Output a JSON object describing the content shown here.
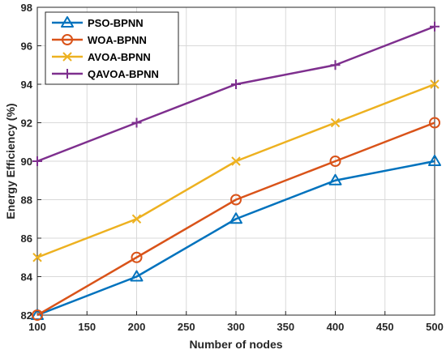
{
  "chart_data": {
    "type": "line",
    "xlabel": "Number of nodes",
    "ylabel": "Energy Efficiency (%)",
    "xlim": [
      100,
      500
    ],
    "ylim": [
      82,
      98
    ],
    "xticks": [
      "100",
      "150",
      "200",
      "250",
      "300",
      "350",
      "400",
      "450",
      "500"
    ],
    "yticks": [
      "82",
      "84",
      "86",
      "88",
      "90",
      "92",
      "94",
      "96",
      "98"
    ],
    "x": [
      100,
      200,
      300,
      400,
      500
    ],
    "grid": true,
    "legend_position": "top-left",
    "series": [
      {
        "name": "PSO-BPNN",
        "values": [
          82,
          84,
          87,
          89,
          90
        ],
        "color": "#0072BD",
        "marker": "triangle"
      },
      {
        "name": "WOA-BPNN",
        "values": [
          82,
          85,
          88,
          90,
          92
        ],
        "color": "#D95319",
        "marker": "circle"
      },
      {
        "name": "AVOA-BPNN",
        "values": [
          85,
          87,
          90,
          92,
          94
        ],
        "color": "#EDB120",
        "marker": "x"
      },
      {
        "name": "QAVOA-BPNN",
        "values": [
          90,
          92,
          94,
          95,
          97
        ],
        "color": "#7E2F8E",
        "marker": "plus"
      }
    ]
  }
}
